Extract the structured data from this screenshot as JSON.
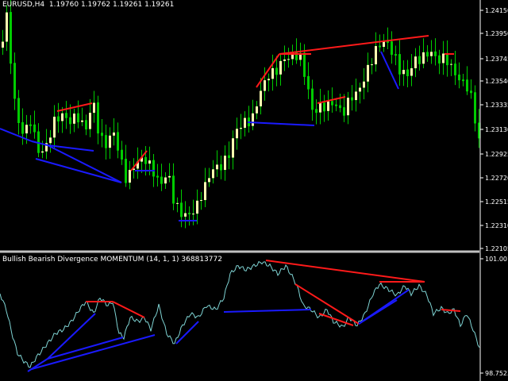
{
  "main": {
    "symbol": "EURUSD,H4",
    "ohlc": "1.19760 1.19762 1.19261 1.19261"
  },
  "indicator": {
    "title": "Bullish Bearish Divergence MOMENTUM (14, 1, 1) 368813772"
  },
  "price_axis": [
    "1.24150",
    "1.23950",
    "1.23745",
    "1.23540",
    "1.23335",
    "1.23130",
    "1.22925",
    "1.22720",
    "1.22515",
    "1.22310",
    "1.22105"
  ],
  "indicator_axis": [
    "101.0019",
    "98.7523"
  ],
  "colors": {
    "background": "#000000",
    "bull_candle": "#ffffb0",
    "wick": "#00cc00",
    "momentum_line": "#7fd4d4",
    "bearish_divergence": "#ff1a1a",
    "bullish_divergence": "#1a1aff",
    "separator": "#c0c0c0"
  }
}
